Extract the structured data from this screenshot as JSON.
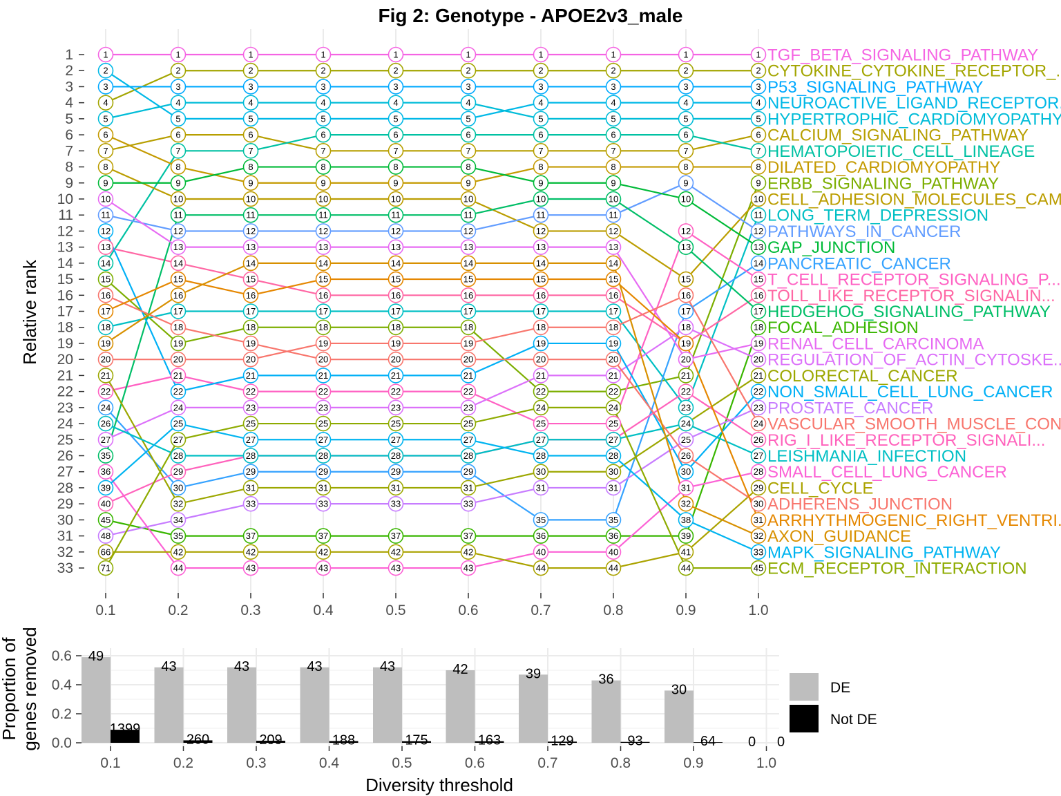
{
  "chart_data": [
    {
      "type": "line",
      "title": "Fig 2: Genotype - APOE2v3_male",
      "xlabel": "",
      "ylabel": "Relative rank",
      "x": [
        0.1,
        0.2,
        0.3,
        0.4,
        0.5,
        0.6,
        0.7,
        0.8,
        0.9,
        1.0
      ],
      "x_tick_labels": [
        "0.1",
        "0.2",
        "0.3",
        "0.4",
        "0.5",
        "0.6",
        "0.7",
        "0.8",
        "0.9",
        "1.0"
      ],
      "y_tick_labels": [
        "1",
        "2",
        "3",
        "4",
        "5",
        "6",
        "7",
        "8",
        "9",
        "10",
        "11",
        "12",
        "13",
        "14",
        "15",
        "16",
        "17",
        "18",
        "19",
        "20",
        "21",
        "22",
        "23",
        "24",
        "25",
        "26",
        "27",
        "28",
        "29",
        "30",
        "31",
        "32",
        "33"
      ],
      "ylim": [
        1,
        33
      ],
      "point_labels": [
        [
          "1",
          "2",
          "3",
          "4",
          "5",
          "6",
          "7",
          "8",
          "9",
          "10",
          "11",
          "12",
          "13",
          "14",
          "15",
          "16",
          "17",
          "18",
          "19",
          "20",
          "21",
          "22",
          "24",
          "26",
          "27",
          "35",
          "36",
          "39",
          "40",
          "45",
          "48",
          "66",
          "71"
        ],
        [
          "1",
          "2",
          "3",
          "4",
          "5",
          "6",
          "7",
          "8",
          "9",
          "10",
          "11",
          "12",
          "13",
          "14",
          "15",
          "16",
          "17",
          "18",
          "19",
          "20",
          "21",
          "22",
          "24",
          "25",
          "27",
          "28",
          "29",
          "30",
          "32",
          "34",
          "35",
          "42",
          "44"
        ],
        [
          "1",
          "2",
          "3",
          "4",
          "5",
          "6",
          "7",
          "8",
          "9",
          "10",
          "11",
          "12",
          "13",
          "14",
          "15",
          "16",
          "17",
          "18",
          "19",
          "20",
          "21",
          "22",
          "23",
          "25",
          "27",
          "28",
          "29",
          "31",
          "33",
          "34",
          "37",
          "42",
          "43"
        ],
        [
          "1",
          "2",
          "3",
          "4",
          "5",
          "6",
          "7",
          "8",
          "9",
          "10",
          "11",
          "12",
          "13",
          "14",
          "15",
          "16",
          "17",
          "18",
          "19",
          "20",
          "21",
          "22",
          "23",
          "25",
          "27",
          "28",
          "29",
          "31",
          "33",
          "34",
          "37",
          "42",
          "43"
        ],
        [
          "1",
          "2",
          "3",
          "4",
          "5",
          "6",
          "7",
          "8",
          "9",
          "10",
          "11",
          "12",
          "13",
          "14",
          "15",
          "16",
          "17",
          "18",
          "19",
          "20",
          "21",
          "22",
          "23",
          "25",
          "27",
          "28",
          "29",
          "31",
          "33",
          "34",
          "37",
          "42",
          "43"
        ],
        [
          "1",
          "2",
          "3",
          "4",
          "5",
          "6",
          "7",
          "8",
          "9",
          "10",
          "11",
          "12",
          "13",
          "14",
          "15",
          "16",
          "17",
          "18",
          "19",
          "20",
          "21",
          "22",
          "23",
          "25",
          "27",
          "28",
          "29",
          "31",
          "33",
          "34",
          "37",
          "42",
          "43"
        ],
        [
          "1",
          "2",
          "3",
          "4",
          "5",
          "6",
          "7",
          "8",
          "9",
          "10",
          "11",
          "12",
          "13",
          "14",
          "15",
          "16",
          "17",
          "18",
          "19",
          "20",
          "21",
          "22",
          "24",
          "25",
          "27",
          "28",
          "30",
          "31",
          "33",
          "35",
          "36",
          "40",
          "44"
        ],
        [
          "1",
          "2",
          "3",
          "4",
          "5",
          "6",
          "7",
          "8",
          "9",
          "10",
          "11",
          "12",
          "13",
          "14",
          "15",
          "16",
          "17",
          "18",
          "19",
          "20",
          "21",
          "22",
          "24",
          "25",
          "27",
          "28",
          "30",
          "31",
          "33",
          "35",
          "36",
          "40",
          "44"
        ],
        [
          "1",
          "2",
          "3",
          "4",
          "5",
          "6",
          "7",
          "8",
          "9",
          "10",
          "11",
          "12",
          "13",
          "14",
          "15",
          "16",
          "17",
          "18",
          "19",
          "20",
          "21",
          "22",
          "23",
          "24",
          "25",
          "26",
          "30",
          "31",
          "32",
          "38",
          "39",
          "41",
          "44"
        ],
        [
          "1",
          "2",
          "3",
          "4",
          "5",
          "6",
          "7",
          "8",
          "9",
          "10",
          "11",
          "12",
          "13",
          "14",
          "15",
          "16",
          "17",
          "18",
          "19",
          "20",
          "21",
          "22",
          "23",
          "24",
          "26",
          "27",
          "28",
          "29",
          "30",
          "31",
          "32",
          "33",
          "45"
        ]
      ],
      "series": [
        {
          "name": "TGF_BETA_SIGNALING_PATHWAY",
          "color": "#F564E3",
          "ranks": [
            1,
            1,
            1,
            1,
            1,
            1,
            1,
            1,
            1,
            1
          ]
        },
        {
          "name": "CYTOKINE_CYTOKINE_RECEPTOR_...",
          "color": "#A3A500",
          "ranks": [
            4,
            2,
            2,
            2,
            2,
            2,
            2,
            2,
            2,
            2
          ]
        },
        {
          "name": "P53_SIGNALING_PATHWAY",
          "color": "#00A9FF",
          "ranks": [
            3,
            3,
            3,
            3,
            3,
            3,
            3,
            3,
            3,
            3
          ]
        },
        {
          "name": "NEUROACTIVE_LIGAND_RECEPTOR...",
          "color": "#00B8E7",
          "ranks": [
            2,
            5,
            5,
            5,
            5,
            5,
            4,
            4,
            4,
            4
          ]
        },
        {
          "name": "HYPERTROPHIC_CARDIOMYOPATHY...",
          "color": "#00BCD8",
          "ranks": [
            5,
            4,
            4,
            4,
            4,
            4,
            5,
            5,
            5,
            5
          ]
        },
        {
          "name": "CALCIUM_SIGNALING_PATHWAY",
          "color": "#B79F00",
          "ranks": [
            7,
            6,
            6,
            7,
            7,
            7,
            7,
            7,
            7,
            6
          ]
        },
        {
          "name": "HEMATOPOIETIC_CELL_LINEAGE",
          "color": "#00C1A3",
          "ranks": [
            14,
            7,
            7,
            6,
            6,
            6,
            6,
            6,
            6,
            7
          ]
        },
        {
          "name": "DILATED_CARDIOMYOPATHY",
          "color": "#C49A00",
          "ranks": [
            6,
            8,
            9,
            9,
            9,
            9,
            8,
            8,
            8,
            8
          ]
        },
        {
          "name": "ERBB_SIGNALING_PATHWAY",
          "color": "#7CAE00",
          "ranks": [
            15,
            19,
            18,
            18,
            18,
            18,
            22,
            22,
            21,
            9
          ]
        },
        {
          "name": "CELL_ADHESION_MOLECULES_CAM...",
          "color": "#BB9D00",
          "ranks": [
            8,
            10,
            10,
            10,
            10,
            10,
            12,
            12,
            15,
            10
          ]
        },
        {
          "name": "LONG_TERM_DEPRESSION",
          "color": "#00BFC4",
          "ranks": [
            18,
            17,
            17,
            17,
            17,
            17,
            17,
            17,
            23,
            11
          ]
        },
        {
          "name": "PATHWAYS_IN_CANCER",
          "color": "#619CFF",
          "ranks": [
            11,
            12,
            12,
            12,
            12,
            12,
            11,
            11,
            9,
            12
          ]
        },
        {
          "name": "GAP_JUNCTION",
          "color": "#00BA38",
          "ranks": [
            9,
            9,
            8,
            8,
            8,
            8,
            9,
            9,
            10,
            13
          ]
        },
        {
          "name": "PANCREATIC_CANCER",
          "color": "#35A2FF",
          "ranks": [
            23,
            28,
            27,
            27,
            27,
            27,
            30,
            30,
            17,
            14
          ]
        },
        {
          "name": "T_CELL_RECEPTOR_SIGNALING_P...",
          "color": "#FF61C3",
          "ranks": [
            22,
            21,
            22,
            22,
            22,
            22,
            24,
            24,
            12,
            15
          ]
        },
        {
          "name": "TOLL_LIKE_RECEPTOR_SIGNALIN...",
          "color": "#FF67A4",
          "ranks": [
            13,
            14,
            15,
            16,
            16,
            16,
            16,
            16,
            19,
            16
          ]
        },
        {
          "name": "HEDGEHOG_SIGNALING_PATHWAY",
          "color": "#00BE67",
          "ranks": [
            26,
            11,
            11,
            11,
            11,
            11,
            10,
            10,
            13,
            17
          ]
        },
        {
          "name": "FOCAL_ADHESION",
          "color": "#39B600",
          "ranks": [
            30,
            31,
            31,
            31,
            31,
            31,
            31,
            31,
            31,
            18
          ]
        },
        {
          "name": "RENAL_CELL_CARCINOMA",
          "color": "#E76BF3",
          "ranks": [
            10,
            13,
            13,
            13,
            13,
            13,
            13,
            13,
            20,
            19
          ]
        },
        {
          "name": "REGULATION_OF_ACTIN_CYTOSKE...",
          "color": "#DC71FA",
          "ranks": [
            25,
            23,
            23,
            23,
            23,
            23,
            21,
            21,
            18,
            20
          ]
        },
        {
          "name": "COLORECTAL_CANCER",
          "color": "#9CA700",
          "ranks": [
            21,
            29,
            28,
            28,
            28,
            28,
            27,
            27,
            24,
            21
          ]
        },
        {
          "name": "NON_SMALL_CELL_LUNG_CANCER",
          "color": "#00B0F6",
          "ranks": [
            12,
            22,
            21,
            21,
            21,
            21,
            19,
            19,
            27,
            22
          ]
        },
        {
          "name": "PROSTATE_CANCER",
          "color": "#C77CFF",
          "ranks": [
            31,
            30,
            29,
            29,
            29,
            29,
            28,
            28,
            25,
            23
          ]
        },
        {
          "name": "VASCULAR_SMOOTH_MUSCLE_CON...",
          "color": "#F8766D",
          "ranks": [
            20,
            20,
            20,
            19,
            19,
            19,
            18,
            18,
            16,
            24
          ]
        },
        {
          "name": "RIG_I_LIKE_RECEPTOR_SIGNALI...",
          "color": "#FF62BC",
          "ranks": [
            29,
            27,
            26,
            26,
            26,
            26,
            25,
            25,
            22,
            25
          ]
        },
        {
          "name": "LEISHMANIA_INFECTION",
          "color": "#00BFC4",
          "ranks": [
            24,
            26,
            26,
            26,
            26,
            26,
            25,
            25,
            24,
            26
          ]
        },
        {
          "name": "SMALL_CELL_LUNG_CANCER",
          "color": "#FC61D5",
          "ranks": [
            27,
            33,
            33,
            33,
            33,
            33,
            32,
            32,
            28,
            27
          ]
        },
        {
          "name": "CELL_CYCLE",
          "color": "#ABA300",
          "ranks": [
            32,
            32,
            32,
            32,
            32,
            32,
            33,
            33,
            32,
            28
          ]
        },
        {
          "name": "ADHERENS_JUNCTION",
          "color": "#F8766D",
          "ranks": [
            16,
            18,
            19,
            20,
            20,
            20,
            20,
            20,
            26,
            29
          ]
        },
        {
          "name": "ARRHYTHMOGENIC_RIGHT_VENTRI...",
          "color": "#E58700",
          "ranks": [
            17,
            15,
            16,
            15,
            15,
            15,
            15,
            15,
            19,
            30
          ]
        },
        {
          "name": "AXON_GUIDANCE",
          "color": "#D89000",
          "ranks": [
            19,
            16,
            14,
            14,
            14,
            14,
            14,
            14,
            29,
            31
          ]
        },
        {
          "name": "MAPK_SIGNALING_PATHWAY",
          "color": "#00B4F0",
          "ranks": [
            28,
            24,
            25,
            25,
            25,
            25,
            26,
            26,
            30,
            32
          ]
        },
        {
          "name": "ECM_RECEPTOR_INTERACTION",
          "color": "#8EAB00",
          "ranks": [
            33,
            25,
            24,
            24,
            24,
            24,
            23,
            23,
            33,
            33
          ]
        }
      ]
    },
    {
      "type": "bar",
      "title": "",
      "xlabel": "Diversity threshold",
      "ylabel": "Proportion of genes removed",
      "ylabel_lines": [
        "Proportion of",
        "genes removed"
      ],
      "categories": [
        "0.1",
        "0.2",
        "0.3",
        "0.4",
        "0.5",
        "0.6",
        "0.7",
        "0.8",
        "0.9",
        "1.0"
      ],
      "y_tick_labels": [
        "0.0",
        "0.2",
        "0.4",
        "0.6"
      ],
      "ylim": [
        0,
        0.65
      ],
      "series": [
        {
          "name": "DE",
          "color": "#BEBEBE",
          "values": [
            0.59,
            0.52,
            0.52,
            0.52,
            0.52,
            0.5,
            0.47,
            0.43,
            0.36,
            0.0
          ],
          "labels": [
            "49",
            "43",
            "43",
            "43",
            "43",
            "42",
            "39",
            "36",
            "30",
            "0"
          ]
        },
        {
          "name": "Not DE",
          "color": "#000000",
          "values": [
            0.09,
            0.017,
            0.014,
            0.012,
            0.011,
            0.011,
            0.008,
            0.006,
            0.004,
            0.0
          ],
          "labels": [
            "1399",
            "260",
            "209",
            "188",
            "175",
            "163",
            "129",
            "93",
            "64",
            "0"
          ]
        }
      ],
      "legend_position": "right"
    }
  ]
}
